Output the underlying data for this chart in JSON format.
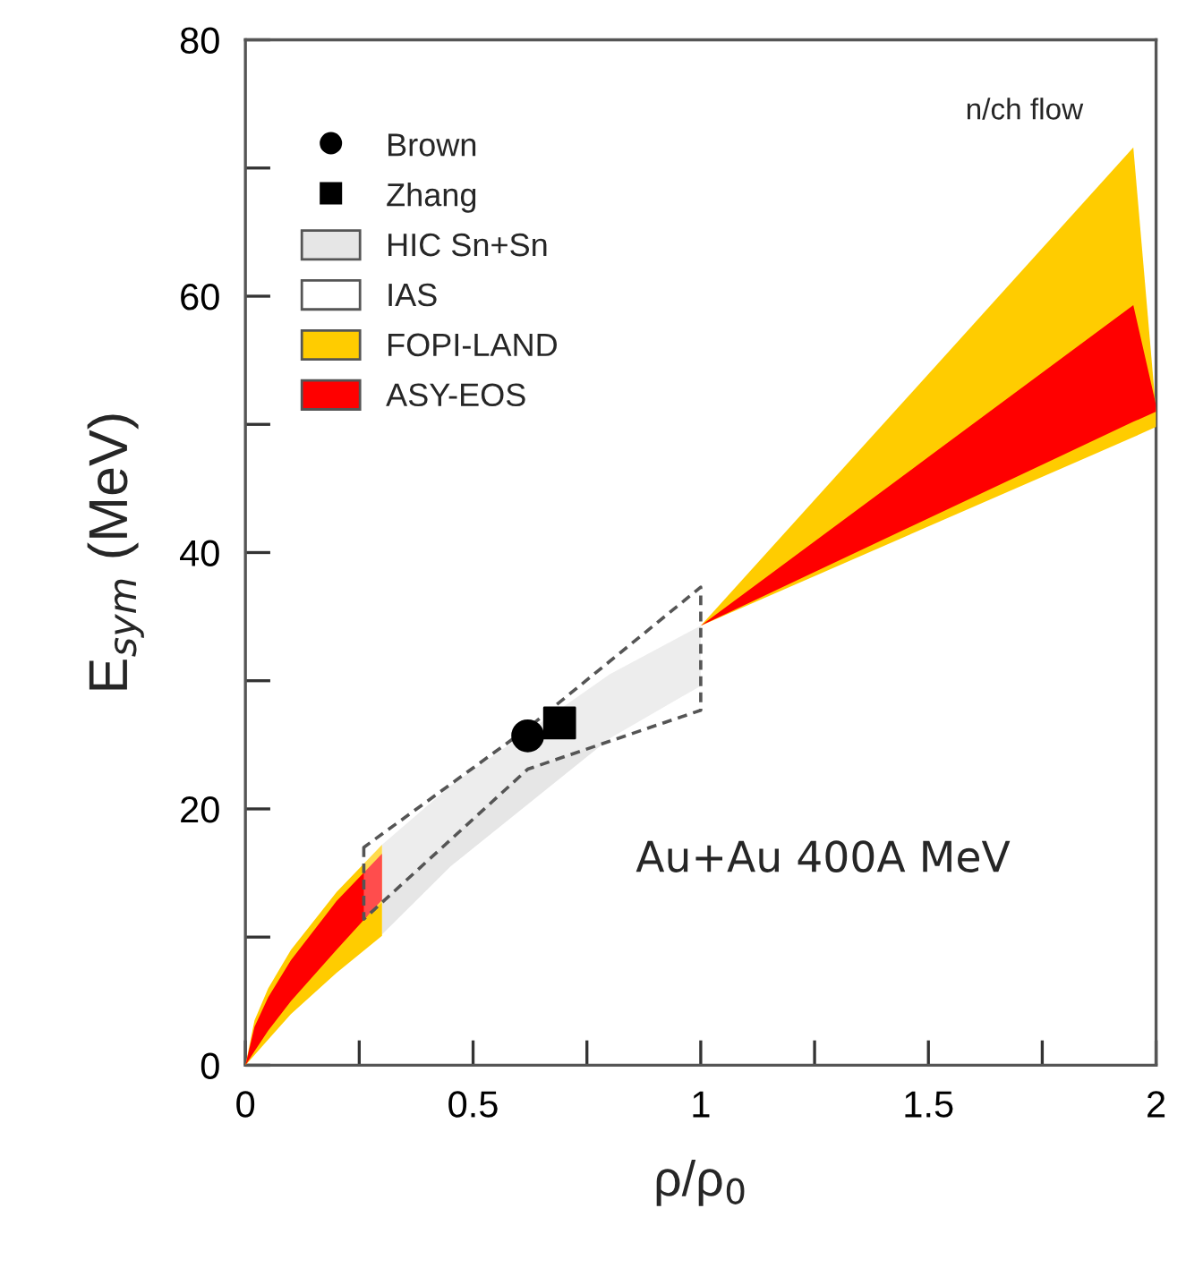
{
  "chart_data": {
    "type": "area",
    "xlabel": "ρ/ρ$_{0}$",
    "ylabel": "E$_{sym}$ (MeV)",
    "xlim": [
      0,
      2
    ],
    "ylim": [
      0,
      80
    ],
    "xticks": [
      0,
      {
        "value": 0.25,
        "label": null
      },
      0.5,
      {
        "value": 0.75,
        "label": null
      },
      1,
      {
        "value": 1.25,
        "label": null
      },
      1.5,
      {
        "value": 1.75,
        "label": null
      },
      2
    ],
    "yticks": [
      0,
      {
        "value": 10,
        "label": null
      },
      20,
      {
        "value": 30,
        "label": null
      },
      40,
      {
        "value": 50,
        "label": null
      },
      60,
      {
        "value": 70,
        "label": null
      },
      80
    ],
    "grid": false,
    "legend": "top left",
    "annotations": [
      "n/ch flow",
      "Au+Au 400A MeV"
    ],
    "series": [
      {
        "name": "Brown",
        "type": "scatter",
        "marker": "circle",
        "color": "#000000",
        "x": [
          0.62
        ],
        "values": [
          25.7
        ]
      },
      {
        "name": "Zhang",
        "type": "scatter",
        "marker": "square",
        "color": "#000000",
        "x": [
          0.69
        ],
        "values": [
          26.7
        ]
      },
      {
        "name": "HIC Sn+Sn",
        "color": "#e6e6e6",
        "x": [
          0.3,
          0.45,
          0.8,
          1
        ],
        "values": [
          null,
          null,
          null,
          null
        ],
        "lower": [
          10.2,
          15.5,
          25.5,
          29.6
        ],
        "upper": [
          17.2,
          21.8,
          30.5,
          34.3
        ]
      },
      {
        "name": "IAS",
        "color": "#ffffff",
        "line_style": "dashed",
        "x": [
          0.26,
          0.62,
          1
        ],
        "values": [
          null,
          null,
          null
        ],
        "lower": [
          11.4,
          23.1,
          27.7
        ],
        "upper": [
          17,
          26.3,
          37.3
        ]
      },
      {
        "name": "FOPI-LAND",
        "color": "#ffcc00",
        "x": [
          0,
          0.02,
          0.05,
          0.1,
          0.2,
          0.3
        ],
        "values": [
          null,
          null,
          null,
          null,
          null,
          null
        ],
        "lower": [
          0,
          0.8,
          2,
          4,
          7.2,
          10.1
        ],
        "upper": [
          0,
          3.5,
          6,
          9,
          13.5,
          17.2
        ]
      },
      {
        "color": "#ffcc00",
        "x": [
          1,
          1.95,
          2
        ],
        "values": [
          null,
          null,
          null
        ],
        "lower": [
          34.3,
          49,
          49.8
        ],
        "upper": [
          34.3,
          71.6,
          51
        ]
      },
      {
        "name": "ASY-EOS",
        "color": "#ff0000",
        "x": [
          0,
          0.02,
          0.05,
          0.1,
          0.2,
          0.3
        ],
        "values": [
          null,
          null,
          null,
          null,
          null,
          null
        ],
        "lower": [
          0,
          1.1,
          2.7,
          5,
          9,
          12.9
        ],
        "upper": [
          0,
          3,
          5.3,
          8.2,
          12.8,
          16.5
        ]
      },
      {
        "color": "#ff0000",
        "x": [
          1,
          1.95,
          2
        ],
        "values": [
          null,
          null,
          null
        ],
        "lower": [
          34.3,
          50.2,
          51
        ],
        "upper": [
          34.3,
          59.3,
          51.5
        ]
      }
    ]
  }
}
